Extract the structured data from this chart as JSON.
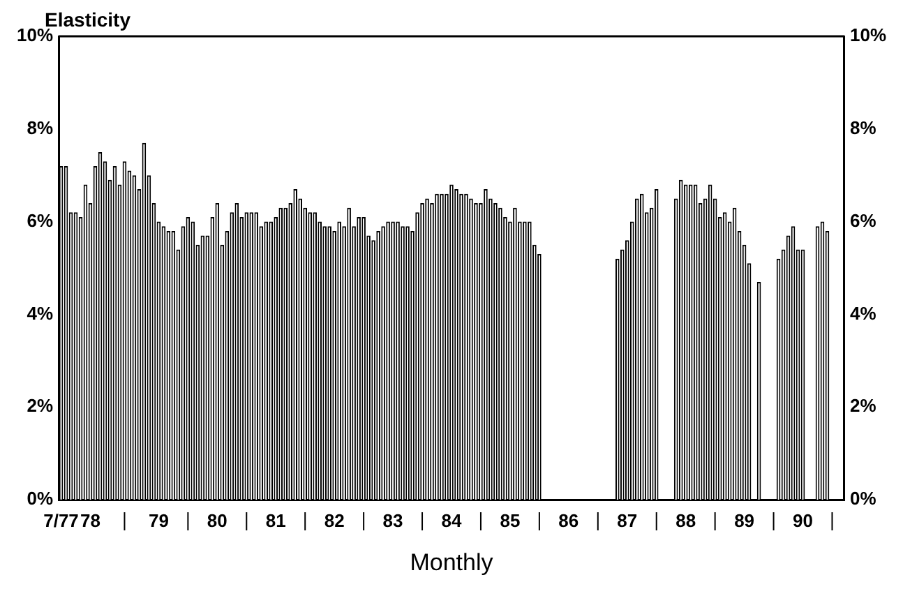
{
  "chart_data": {
    "type": "bar",
    "ylabel": "Elasticity",
    "xlabel": "Monthly",
    "categories": [
      "7/77",
      null,
      null,
      null,
      null,
      null,
      "78",
      null,
      null,
      null,
      null,
      null,
      null,
      null,
      null,
      null,
      null,
      null,
      null,
      null,
      "79",
      null,
      null,
      null,
      null,
      null,
      null,
      null,
      null,
      null,
      null,
      null,
      "80",
      null,
      null,
      null,
      null,
      null,
      null,
      null,
      null,
      null,
      null,
      null,
      "81",
      null,
      null,
      null,
      null,
      null,
      null,
      null,
      null,
      null,
      null,
      null,
      "82",
      null,
      null,
      null,
      null,
      null,
      null,
      null,
      null,
      null,
      null,
      null,
      "83",
      null,
      null,
      null,
      null,
      null,
      null,
      null,
      null,
      null,
      null,
      null,
      "84",
      null,
      null,
      null,
      null,
      null,
      null,
      null,
      null,
      null,
      null,
      null,
      "85",
      null,
      null,
      null,
      null,
      null,
      null,
      null,
      null,
      null,
      null,
      null,
      "86",
      null,
      null,
      null,
      null,
      null,
      null,
      null,
      null,
      null,
      null,
      null,
      "87",
      null,
      null,
      null,
      null,
      null,
      null,
      null,
      null,
      null,
      null,
      null,
      "88",
      null,
      null,
      null,
      null,
      null,
      null,
      null,
      null,
      null,
      null,
      null,
      "89",
      null,
      null,
      null,
      null,
      null,
      null,
      null,
      null,
      null,
      null,
      null,
      "90",
      null,
      null,
      null,
      null,
      null,
      null,
      null,
      null
    ],
    "series": [
      {
        "color": "#000000",
        "values": [
          7.2,
          7.2,
          6.2,
          6.2,
          6.1,
          6.8,
          6.4,
          7.2,
          7.5,
          7.3,
          6.9,
          7.2,
          6.8,
          7.3,
          7.1,
          7.0,
          6.7,
          7.7,
          7.0,
          6.4,
          6.0,
          5.9,
          5.8,
          5.8,
          5.4,
          5.9,
          6.1,
          6.0,
          5.5,
          5.7,
          5.7,
          6.1,
          6.4,
          5.5,
          5.8,
          6.2,
          6.4,
          6.1,
          6.2,
          6.2,
          6.2,
          5.9,
          6.0,
          6.0,
          6.1,
          6.3,
          6.3,
          6.4,
          6.7,
          6.5,
          6.3,
          6.2,
          6.2,
          6.0,
          5.9,
          5.9,
          5.8,
          6.0,
          5.9,
          6.3,
          5.9,
          6.1,
          6.1,
          5.7,
          5.6,
          5.8,
          5.9,
          6.0,
          6.0,
          6.0,
          5.9,
          5.9,
          5.8,
          6.2,
          6.4,
          6.5,
          6.4,
          6.6,
          6.6,
          6.6,
          6.8,
          6.7,
          6.6,
          6.6,
          6.5,
          6.4,
          6.4,
          6.7,
          6.5,
          6.4,
          6.3,
          6.1,
          6.0,
          6.3,
          6.0,
          6.0,
          6.0,
          5.5,
          5.3,
          null,
          null,
          null,
          null,
          null,
          null,
          null,
          null,
          null,
          null,
          null,
          null,
          null,
          null,
          null,
          5.2,
          5.4,
          5.6,
          6.0,
          6.5,
          6.6,
          6.2,
          6.3,
          6.7,
          null,
          null,
          null,
          6.5,
          6.9,
          6.8,
          6.8,
          6.8,
          6.4,
          6.5,
          6.8,
          6.5,
          6.1,
          6.2,
          6.0,
          6.3,
          5.8,
          5.5,
          5.1,
          null,
          4.7,
          null,
          null,
          null,
          5.2,
          5.4,
          5.7,
          5.9,
          5.4,
          5.4,
          null,
          null,
          5.9,
          6.0,
          5.8,
          null,
          null,
          null
        ]
      }
    ],
    "ylim": [
      0,
      10
    ],
    "yticks": [
      {
        "value": 0,
        "label": "0%"
      },
      {
        "value": 2,
        "label": "2%"
      },
      {
        "value": 4,
        "label": "4%"
      },
      {
        "value": 6,
        "label": "6%"
      },
      {
        "value": 8,
        "label": "8%"
      },
      {
        "value": 10,
        "label": "10%"
      }
    ],
    "y2lim": [
      0,
      10
    ],
    "y2ticks": [
      {
        "value": 0,
        "label": "0%"
      },
      {
        "value": 2,
        "label": "2%"
      },
      {
        "value": 4,
        "label": "4%"
      },
      {
        "value": 6,
        "label": "6%"
      },
      {
        "value": 8,
        "label": "8%"
      },
      {
        "value": 10,
        "label": "10%"
      }
    ]
  }
}
